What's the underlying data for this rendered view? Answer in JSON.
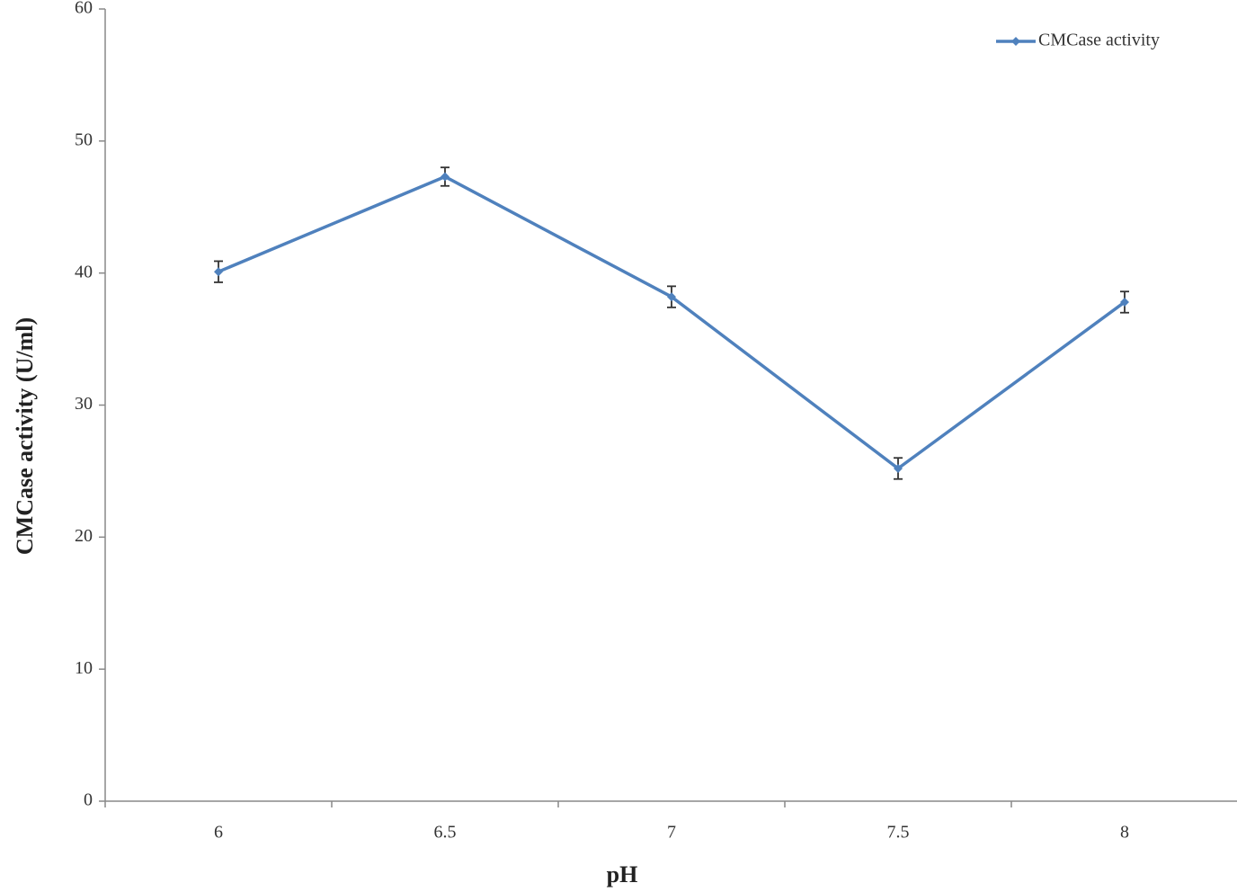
{
  "chart_data": {
    "type": "line",
    "x_label": "pH",
    "y_label": "CMCase activity (U/ml)",
    "categories": [
      "6",
      "6.5",
      "7",
      "7.5",
      "8"
    ],
    "series": [
      {
        "name": "CMCase activity",
        "color": "#4f81bd",
        "values": [
          40.1,
          47.3,
          38.2,
          25.2,
          37.8
        ],
        "errors": [
          0.8,
          0.7,
          0.8,
          0.8,
          0.8
        ]
      }
    ],
    "ylim": [
      0,
      60
    ],
    "yticks": [
      0,
      10,
      20,
      30,
      40,
      50,
      60
    ],
    "grid": false,
    "legend": "upper right"
  }
}
